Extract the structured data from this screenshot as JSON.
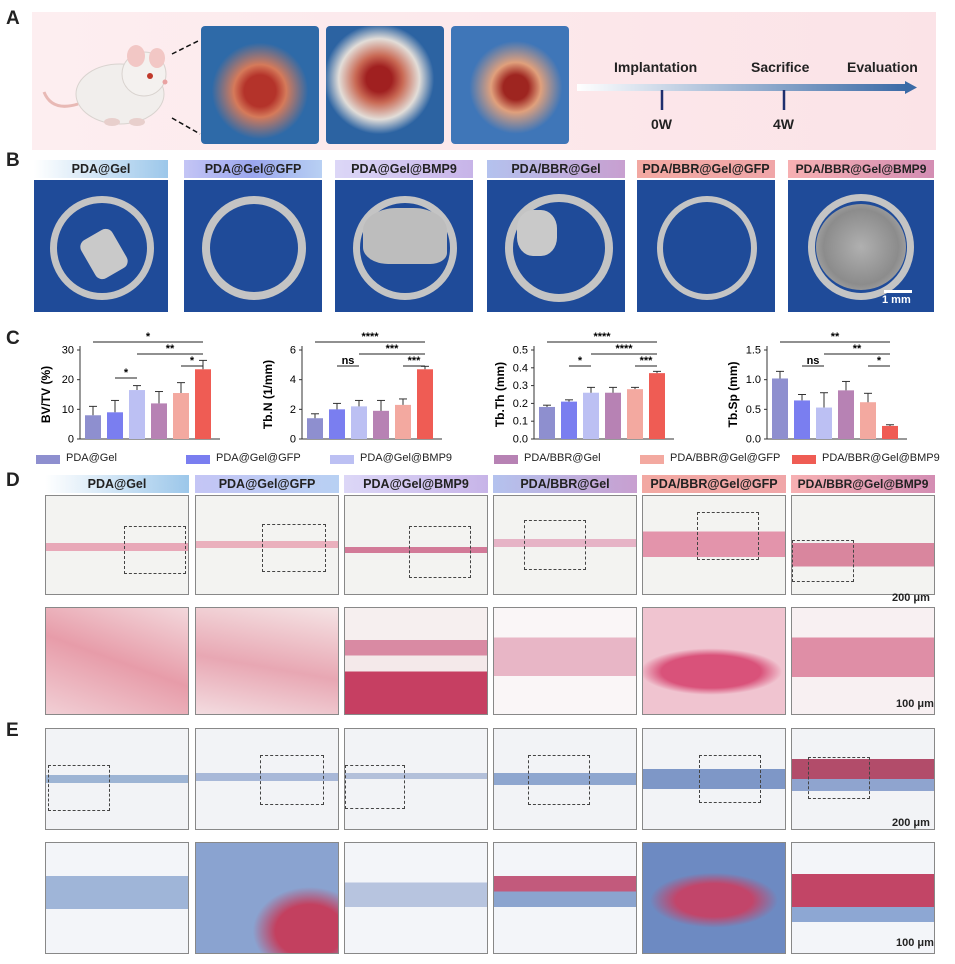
{
  "panel_labels": {
    "a": "A",
    "b": "B",
    "c": "C",
    "d": "D",
    "e": "E"
  },
  "timeline": {
    "steps": [
      "Implantation",
      "Sacrifice",
      "Evaluation"
    ],
    "ticks": [
      "0W",
      "4W"
    ]
  },
  "groups": [
    "PDA@Gel",
    "PDA@Gel@GFP",
    "PDA@Gel@BMP9",
    "PDA/BBR@Gel",
    "PDA/BBR@Gel@GFP",
    "PDA/BBR@Gel@BMP9"
  ],
  "colors": [
    "#8e8fcf",
    "#7a7ef0",
    "#bcc0f3",
    "#b782b4",
    "#f3a9a0",
    "#ef5c54"
  ],
  "scale_bars": {
    "ct": "1 mm",
    "he_low": "200 μm",
    "he_high": "100 μm",
    "mt_low": "200 μm",
    "mt_high": "100 μm"
  },
  "chart_data": [
    {
      "type": "bar",
      "ylabel": "BV/TV (%)",
      "ylim": [
        0,
        30
      ],
      "ticks": [
        "0",
        "10",
        "20",
        "30"
      ],
      "categories": [
        "PDA@Gel",
        "PDA@Gel@GFP",
        "PDA@Gel@BMP9",
        "PDA/BBR@Gel",
        "PDA/BBR@Gel@GFP",
        "PDA/BBR@Gel@BMP9"
      ],
      "values": [
        8,
        9,
        16.5,
        12,
        15.5,
        23.5
      ],
      "errors": [
        3,
        4,
        1.5,
        4,
        3.5,
        3
      ],
      "significance": [
        "*",
        "**",
        "*",
        "*"
      ]
    },
    {
      "type": "bar",
      "ylabel": "Tb.N (1/mm)",
      "ylim": [
        0,
        6
      ],
      "ticks": [
        "0",
        "2",
        "4",
        "6"
      ],
      "categories": [
        "PDA@Gel",
        "PDA@Gel@GFP",
        "PDA@Gel@BMP9",
        "PDA/BBR@Gel",
        "PDA/BBR@Gel@GFP",
        "PDA/BBR@Gel@BMP9"
      ],
      "values": [
        1.4,
        2.0,
        2.2,
        1.9,
        2.3,
        4.7
      ],
      "errors": [
        0.3,
        0.4,
        0.4,
        0.7,
        0.4,
        0.2
      ],
      "significance": [
        "ns",
        "****",
        "***",
        "***"
      ]
    },
    {
      "type": "bar",
      "ylabel": "Tb.Th (mm)",
      "ylim": [
        0,
        0.5
      ],
      "ticks": [
        "0.0",
        "0.1",
        "0.2",
        "0.3",
        "0.4",
        "0.5"
      ],
      "categories": [
        "PDA@Gel",
        "PDA@Gel@GFP",
        "PDA@Gel@BMP9",
        "PDA/BBR@Gel",
        "PDA/BBR@Gel@GFP",
        "PDA/BBR@Gel@BMP9"
      ],
      "values": [
        0.18,
        0.21,
        0.26,
        0.26,
        0.28,
        0.37
      ],
      "errors": [
        0.01,
        0.01,
        0.03,
        0.03,
        0.01,
        0.01
      ],
      "significance": [
        "*",
        "****",
        "****",
        "***"
      ]
    },
    {
      "type": "bar",
      "ylabel": "Tb.Sp (mm)",
      "ylim": [
        0,
        1.5
      ],
      "ticks": [
        "0.0",
        "0.5",
        "1.0",
        "1.5"
      ],
      "categories": [
        "PDA@Gel",
        "PDA@Gel@GFP",
        "PDA@Gel@BMP9",
        "PDA/BBR@Gel",
        "PDA/BBR@Gel@GFP",
        "PDA/BBR@Gel@BMP9"
      ],
      "values": [
        1.02,
        0.65,
        0.53,
        0.82,
        0.62,
        0.22
      ],
      "errors": [
        0.12,
        0.1,
        0.25,
        0.15,
        0.15,
        0.02
      ],
      "significance": [
        "ns",
        "**",
        "**",
        "*"
      ]
    }
  ]
}
